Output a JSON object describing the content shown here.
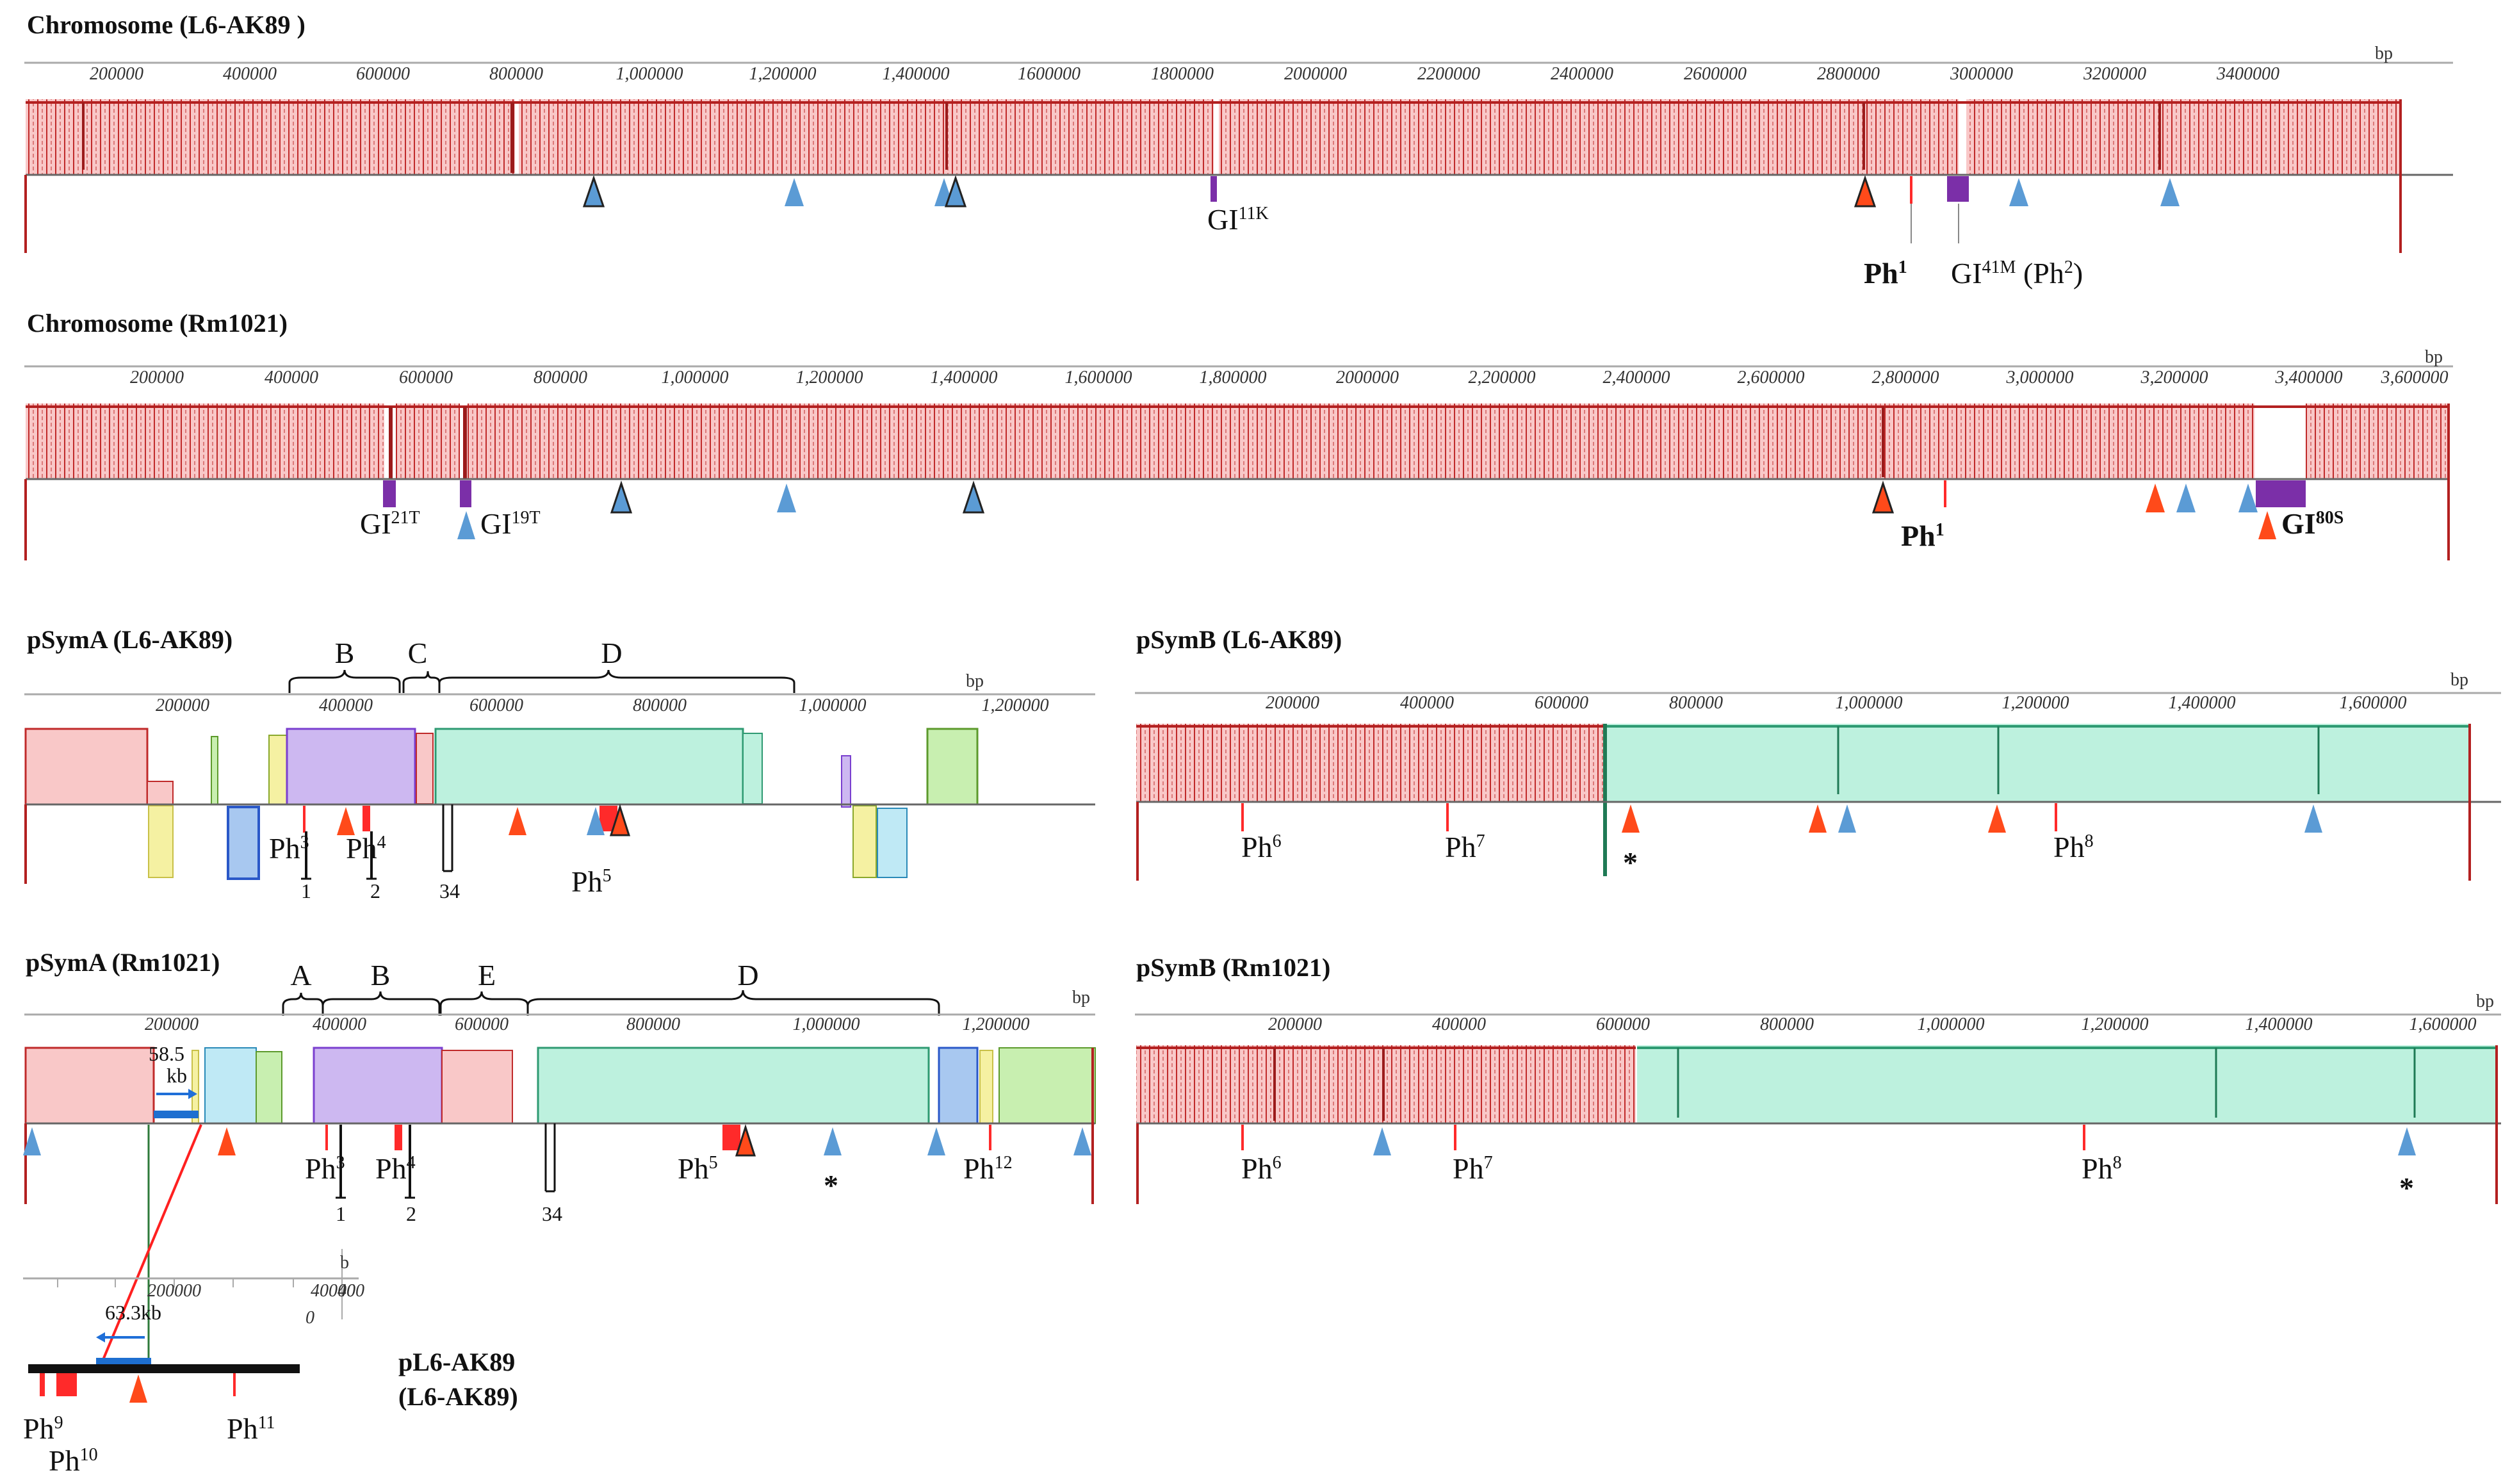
{
  "colors": {
    "pink": "#f9c8c8",
    "pink_edge": "#c02a2a",
    "pink_dark": "#9b1b1b",
    "teal": "#bdf1de",
    "teal_edge": "#2e9a72",
    "teal_dark": "#1f7a55",
    "purple": "#cdb8f1",
    "purple_edge": "#7a3fcf",
    "island": "#7b2fa8",
    "yellow": "#f5f1a2",
    "lblue": "#bfe9f5",
    "green": "#c8efb0",
    "tri_red": "#ff4a1a",
    "tri_blue": "#5b9bd5",
    "tri_dark": "#3e7cb1",
    "ph_red": "#ff2a2a",
    "line_blue": "#1f6fd8",
    "frag_blue": "#1e6fd0"
  },
  "unit_label": "bp",
  "panels": [
    {
      "id": "chr-ak89",
      "title": "Chromosome (L6-AK89 )",
      "ticks": [
        "200000",
        "400000",
        "600000",
        "800000",
        "1,000000",
        "1,200000",
        "1,400000",
        "1600000",
        "1800000",
        "2000000",
        "2200000",
        "2400000",
        "2600000",
        "2800000",
        "3000000",
        "3200000",
        "3400000"
      ],
      "labels": [
        {
          "key": "gi11k",
          "base": "GI",
          "sup": "11K"
        },
        {
          "key": "ph1",
          "base": "Ph",
          "sup": "1"
        },
        {
          "key": "gi41m",
          "base": "GI",
          "sup": "41M",
          "tail": " (Ph",
          "sup2": "2",
          "tail2": ")"
        }
      ]
    },
    {
      "id": "chr-rm1021",
      "title": "Chromosome (Rm1021)",
      "ticks": [
        "200000",
        "400000",
        "600000",
        "800000",
        "1,000000",
        "1,200000",
        "1,400000",
        "1,600000",
        "1,800000",
        "2000000",
        "2,200000",
        "2,400000",
        "2,600000",
        "2,800000",
        "3,000000",
        "3,200000",
        "3,400000",
        "3,600000"
      ],
      "labels": [
        {
          "key": "gi21t",
          "base": "GI",
          "sup": "21T"
        },
        {
          "key": "gi19t",
          "base": "GI",
          "sup": "19T"
        },
        {
          "key": "ph1",
          "base": "Ph",
          "sup": "1"
        },
        {
          "key": "gi80s",
          "base": "GI",
          "sup": "80S"
        }
      ]
    },
    {
      "id": "psyma-ak89",
      "title": "pSymA (L6-AK89)",
      "ticks": [
        "200000",
        "400000",
        "600000",
        "800000",
        "1,000000",
        "1,200000"
      ],
      "segments": [
        "B",
        "C",
        "D"
      ],
      "labels": [
        {
          "key": "ph3",
          "base": "Ph",
          "sup": "3"
        },
        {
          "key": "ph4",
          "base": "Ph",
          "sup": "4"
        },
        {
          "key": "ph5",
          "base": "Ph",
          "sup": "5"
        }
      ],
      "markers": [
        "1",
        "2",
        "34"
      ]
    },
    {
      "id": "psymb-ak89",
      "title": "pSymB (L6-AK89)",
      "ticks": [
        "200000",
        "400000",
        "600000",
        "800000",
        "1,000000",
        "1,200000",
        "1,400000",
        "1,600000"
      ],
      "labels": [
        {
          "key": "ph6",
          "base": "Ph",
          "sup": "6"
        },
        {
          "key": "ph7",
          "base": "Ph",
          "sup": "7"
        },
        {
          "key": "ph8",
          "base": "Ph",
          "sup": "8"
        }
      ],
      "star": "*"
    },
    {
      "id": "psyma-rm1021",
      "title": "pSymA (Rm1021)",
      "ticks": [
        "200000",
        "400000",
        "600000",
        "800000",
        "1,000000",
        "1,200000"
      ],
      "segments": [
        "A",
        "B",
        "E",
        "D"
      ],
      "labels": [
        {
          "key": "ph3",
          "base": "Ph",
          "sup": "3"
        },
        {
          "key": "ph4",
          "base": "Ph",
          "sup": "4"
        },
        {
          "key": "ph5",
          "base": "Ph",
          "sup": "5"
        },
        {
          "key": "ph12",
          "base": "Ph",
          "sup": "12"
        }
      ],
      "markers": [
        "1",
        "2",
        "34"
      ],
      "star": "*",
      "fragment_label": "58.5",
      "fragment_unit": "kb"
    },
    {
      "id": "psymb-rm1021",
      "title": "pSymB (Rm1021)",
      "ticks": [
        "200000",
        "400000",
        "600000",
        "800000",
        "1,000000",
        "1,200000",
        "1,400000",
        "1,600000"
      ],
      "labels": [
        {
          "key": "ph6",
          "base": "Ph",
          "sup": "6"
        },
        {
          "key": "ph7",
          "base": "Ph",
          "sup": "7"
        },
        {
          "key": "ph8",
          "base": "Ph",
          "sup": "8"
        }
      ],
      "star": "*"
    },
    {
      "id": "pl6",
      "title": "pL6-AK89",
      "subtitle": "(L6-AK89)",
      "unit_label": "b",
      "ticks": [
        "200000",
        "40000",
        "0"
      ],
      "tick_extra": "400",
      "fragment_label": "63.3kb",
      "labels": [
        {
          "key": "ph9",
          "base": "Ph",
          "sup": "9"
        },
        {
          "key": "ph10",
          "base": "Ph",
          "sup": "10"
        },
        {
          "key": "ph11",
          "base": "Ph",
          "sup": "11"
        }
      ]
    }
  ]
}
